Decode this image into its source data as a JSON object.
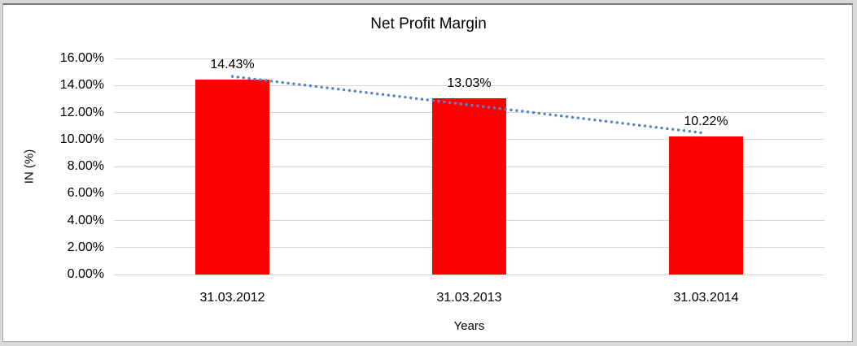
{
  "window": {
    "background_color": "#d9d9d9",
    "canvas_color": "#ffffff"
  },
  "chart_data": {
    "type": "bar",
    "title": "Net Profit Margin",
    "categories": [
      "31.03.2012",
      "31.03.2013",
      "31.03.2014"
    ],
    "values": [
      14.43,
      13.03,
      10.22
    ],
    "value_labels": [
      "14.43%",
      "13.03%",
      "10.22%"
    ],
    "xlabel": "Years",
    "ylabel": "IN (%)",
    "ylim": [
      0,
      16
    ],
    "ytick_step": 2,
    "ytick_labels": [
      "0.00%",
      "2.00%",
      "4.00%",
      "6.00%",
      "8.00%",
      "10.00%",
      "12.00%",
      "14.00%",
      "16.00%"
    ],
    "grid": true,
    "legend": "none",
    "bar_color": "#ff0000",
    "trendline": {
      "style": "dotted",
      "color": "#5585c5",
      "start_value": 14.67,
      "end_value": 10.46
    }
  }
}
